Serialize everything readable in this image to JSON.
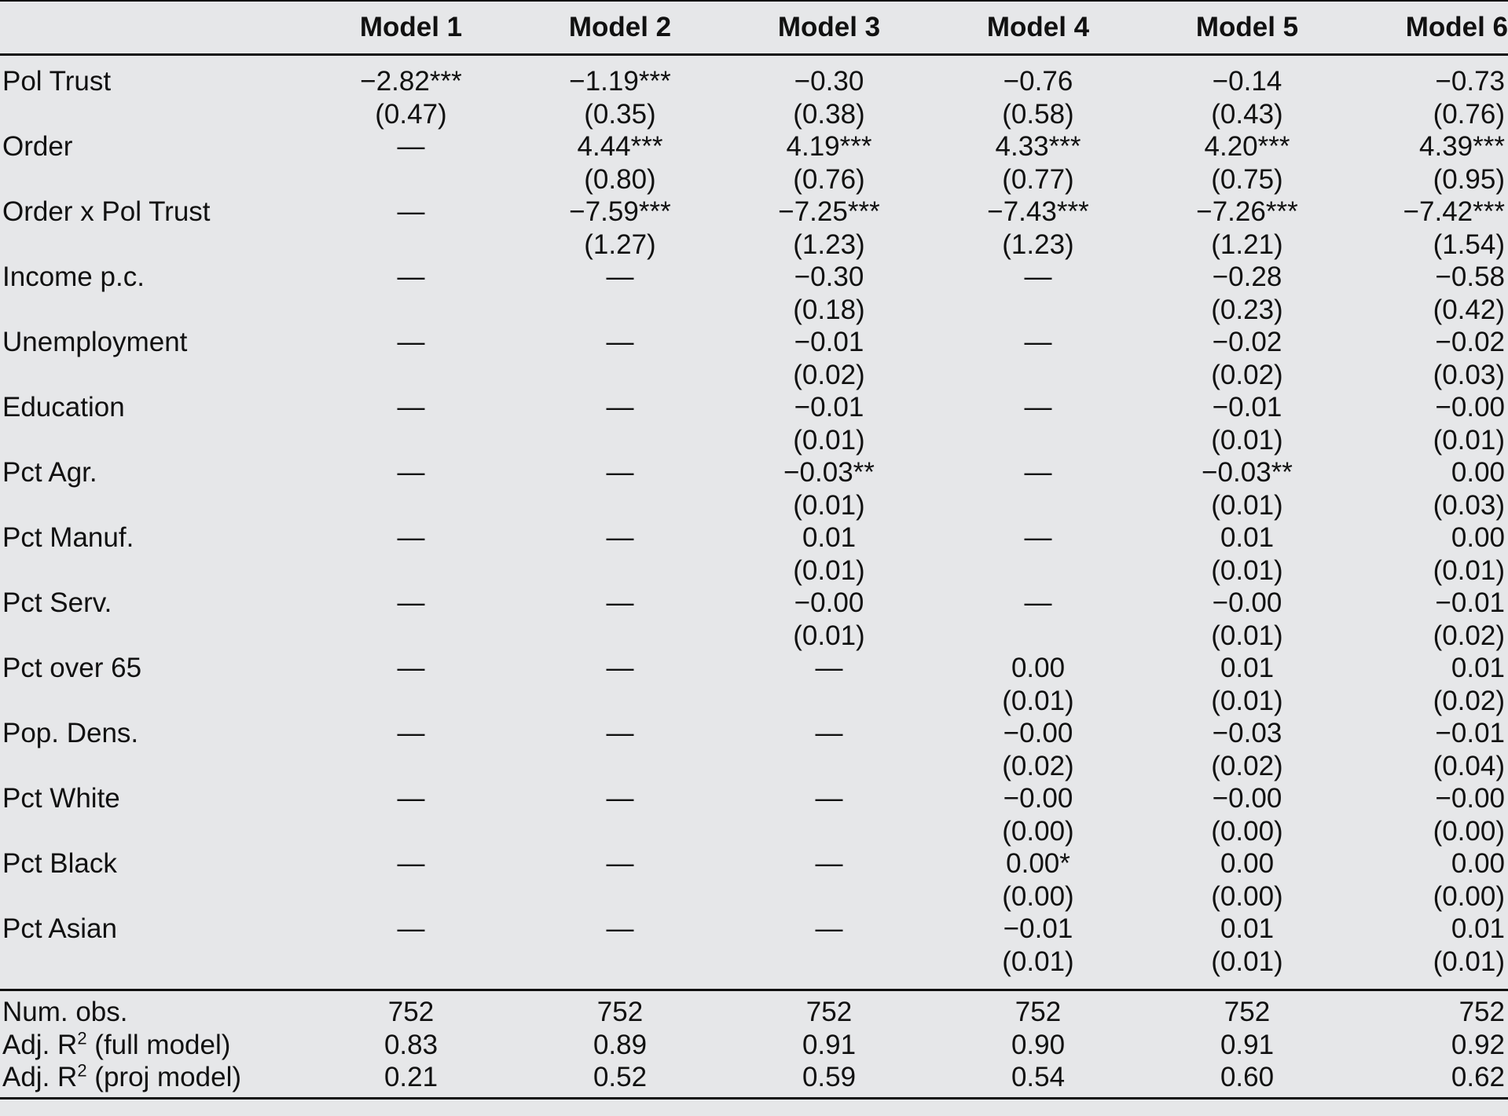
{
  "columns": [
    "",
    "Model 1",
    "Model 2",
    "Model 3",
    "Model 4",
    "Model 5",
    "Model 6"
  ],
  "rows": [
    {
      "label": "Pol Trust",
      "coef": [
        "−2.82***",
        "−1.19***",
        "−0.30",
        "−0.76",
        "−0.14",
        "−0.73"
      ],
      "se": [
        "(0.47)",
        "(0.35)",
        "(0.38)",
        "(0.58)",
        "(0.43)",
        "(0.76)"
      ]
    },
    {
      "label": "Order",
      "coef": [
        "—",
        "4.44***",
        "4.19***",
        "4.33***",
        "4.20***",
        "4.39***"
      ],
      "se": [
        "",
        "(0.80)",
        "(0.76)",
        "(0.77)",
        "(0.75)",
        "(0.95)"
      ]
    },
    {
      "label": "Order x Pol Trust",
      "coef": [
        "—",
        "−7.59***",
        "−7.25***",
        "−7.43***",
        "−7.26***",
        "−7.42***"
      ],
      "se": [
        "",
        "(1.27)",
        "(1.23)",
        "(1.23)",
        "(1.21)",
        "(1.54)"
      ]
    },
    {
      "label": "Income p.c.",
      "coef": [
        "—",
        "—",
        "−0.30",
        "—",
        "−0.28",
        "−0.58"
      ],
      "se": [
        "",
        "",
        "(0.18)",
        "",
        "(0.23)",
        "(0.42)"
      ]
    },
    {
      "label": "Unemployment",
      "coef": [
        "—",
        "—",
        "−0.01",
        "—",
        "−0.02",
        "−0.02"
      ],
      "se": [
        "",
        "",
        "(0.02)",
        "",
        "(0.02)",
        "(0.03)"
      ]
    },
    {
      "label": "Education",
      "coef": [
        "—",
        "—",
        "−0.01",
        "—",
        "−0.01",
        "−0.00"
      ],
      "se": [
        "",
        "",
        "(0.01)",
        "",
        "(0.01)",
        "(0.01)"
      ]
    },
    {
      "label": "Pct Agr.",
      "coef": [
        "—",
        "—",
        "−0.03**",
        "—",
        "−0.03**",
        "0.00"
      ],
      "se": [
        "",
        "",
        "(0.01)",
        "",
        "(0.01)",
        "(0.03)"
      ]
    },
    {
      "label": "Pct Manuf.",
      "coef": [
        "—",
        "—",
        "0.01",
        "—",
        "0.01",
        "0.00"
      ],
      "se": [
        "",
        "",
        "(0.01)",
        "",
        "(0.01)",
        "(0.01)"
      ]
    },
    {
      "label": "Pct Serv.",
      "coef": [
        "—",
        "—",
        "−0.00",
        "—",
        "−0.00",
        "−0.01"
      ],
      "se": [
        "",
        "",
        "(0.01)",
        "",
        "(0.01)",
        "(0.02)"
      ]
    },
    {
      "label": "Pct over 65",
      "coef": [
        "—",
        "—",
        "—",
        "0.00",
        "0.01",
        "0.01"
      ],
      "se": [
        "",
        "",
        "",
        "(0.01)",
        "(0.01)",
        "(0.02)"
      ]
    },
    {
      "label": "Pop. Dens.",
      "coef": [
        "—",
        "—",
        "—",
        "−0.00",
        "−0.03",
        "−0.01"
      ],
      "se": [
        "",
        "",
        "",
        "(0.02)",
        "(0.02)",
        "(0.04)"
      ]
    },
    {
      "label": "Pct White",
      "coef": [
        "—",
        "—",
        "—",
        "−0.00",
        "−0.00",
        "−0.00"
      ],
      "se": [
        "",
        "",
        "",
        "(0.00)",
        "(0.00)",
        "(0.00)"
      ]
    },
    {
      "label": "Pct Black",
      "coef": [
        "—",
        "—",
        "—",
        "0.00*",
        "0.00",
        "0.00"
      ],
      "se": [
        "",
        "",
        "",
        "(0.00)",
        "(0.00)",
        "(0.00)"
      ]
    },
    {
      "label": "Pct Asian",
      "coef": [
        "—",
        "—",
        "—",
        "−0.01",
        "0.01",
        "0.01"
      ],
      "se": [
        "",
        "",
        "",
        "(0.01)",
        "(0.01)",
        "(0.01)"
      ]
    }
  ],
  "stats": [
    {
      "label_main": "Num. obs.",
      "label_sup": "",
      "label_rest": "",
      "values": [
        "752",
        "752",
        "752",
        "752",
        "752",
        "752"
      ]
    },
    {
      "label_main": "Adj. R",
      "label_sup": "2",
      "label_rest": " (full model)",
      "values": [
        "0.83",
        "0.89",
        "0.91",
        "0.90",
        "0.91",
        "0.92"
      ]
    },
    {
      "label_main": "Adj. R",
      "label_sup": "2",
      "label_rest": " (proj model)",
      "values": [
        "0.21",
        "0.52",
        "0.59",
        "0.54",
        "0.60",
        "0.62"
      ]
    }
  ]
}
